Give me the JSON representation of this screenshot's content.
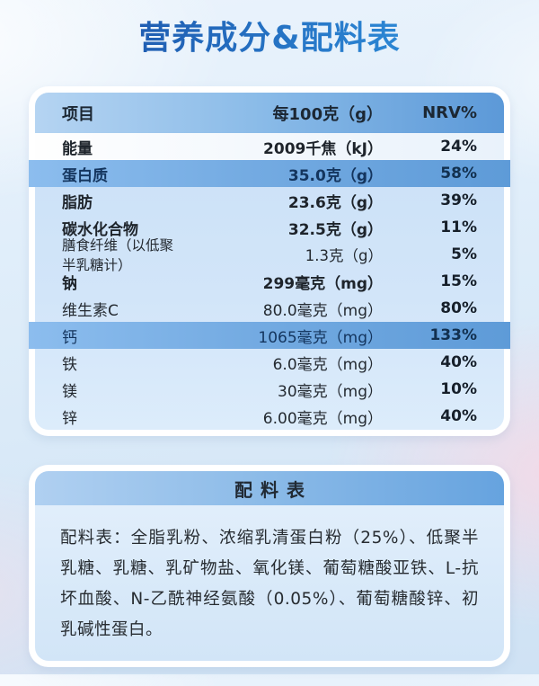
{
  "page": {
    "title": "营养成分&配料表"
  },
  "nutrition_table": {
    "headers": {
      "item": "项目",
      "per100g": "每100克（g）",
      "nrv": "NRV%"
    },
    "rows": [
      {
        "name": "能量",
        "value": "2009千焦（kJ）",
        "nrv": "24%"
      },
      {
        "name": "蛋白质",
        "value": "35.0克（g）",
        "nrv": "58%"
      },
      {
        "name": "脂肪",
        "value": "23.6克（g）",
        "nrv": "39%"
      },
      {
        "name": "碳水化合物",
        "value": "32.5克（g）",
        "nrv": "11%"
      },
      {
        "name": "膳食纤维（以低聚半乳糖计）",
        "value": "1.3克（g）",
        "nrv": "5%"
      },
      {
        "name": "钠",
        "value": "299毫克（mg）",
        "nrv": "15%"
      },
      {
        "name": "维生素C",
        "value": "80.0毫克（mg）",
        "nrv": "80%"
      },
      {
        "name": "钙",
        "value": "1065毫克（mg）",
        "nrv": "133%"
      },
      {
        "name": "铁",
        "value": "6.0毫克（mg）",
        "nrv": "40%"
      },
      {
        "name": "镁",
        "value": "30毫克（mg）",
        "nrv": "10%"
      },
      {
        "name": "锌",
        "value": "6.00毫克（mg）",
        "nrv": "40%"
      }
    ]
  },
  "ingredients": {
    "header": "配料表",
    "text": "配料表：全脂乳粉、浓缩乳清蛋白粉（25%）、低聚半乳糖、乳糖、乳矿物盐、氧化镁、葡萄糖酸亚铁、L-抗坏血酸、N-乙酰神经氨酸（0.05%）、葡萄糖酸锌、初乳碱性蛋白。"
  },
  "colors": {
    "title_gradient_start": "#1d55ab",
    "title_gradient_end": "#2e8fdb",
    "header_bar_start": "#b5d4f2",
    "header_bar_end": "#5c99d8",
    "highlight_row_start": "#8cbdee",
    "highlight_row_end": "#5e9bd8",
    "card_frame": "#ffffff",
    "body_row_bg": "#d2e5f9"
  }
}
